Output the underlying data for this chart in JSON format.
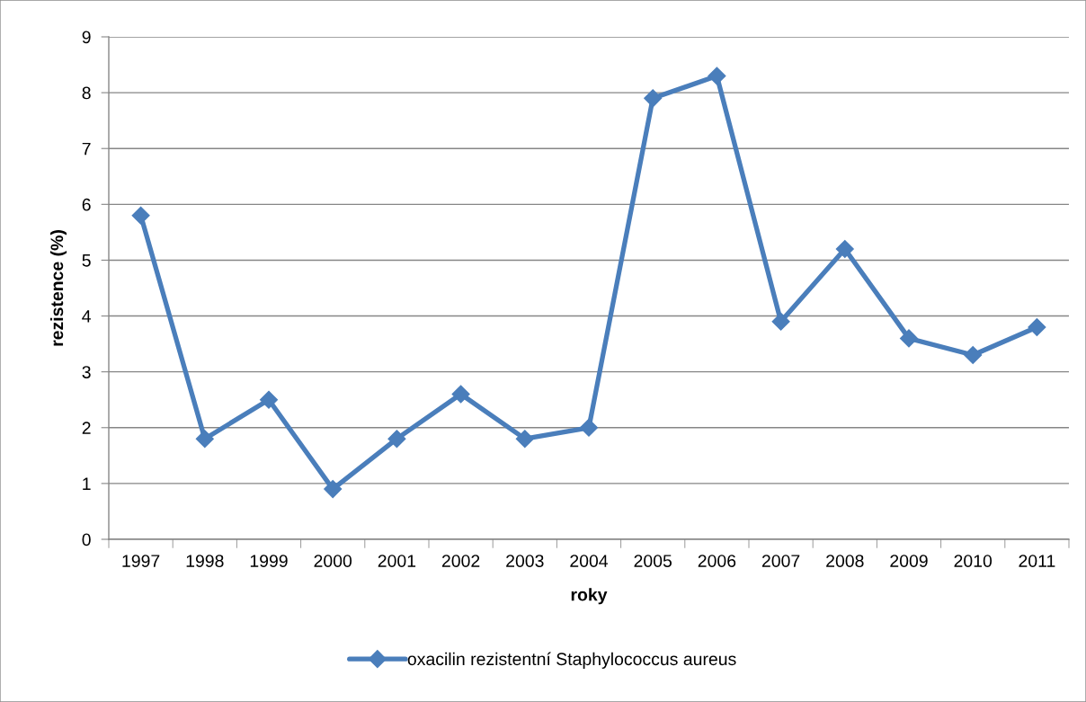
{
  "chart_data": {
    "type": "line",
    "xlabel": "roky",
    "ylabel": "rezistence (%)",
    "categories": [
      "1997",
      "1998",
      "1999",
      "2000",
      "2001",
      "2002",
      "2003",
      "2004",
      "2005",
      "2006",
      "2007",
      "2008",
      "2009",
      "2010",
      "2011"
    ],
    "series": [
      {
        "name": "oxacilin rezistentní Staphylococcus aureus",
        "color": "#4a7ebb",
        "values": [
          5.8,
          1.8,
          2.5,
          0.9,
          1.8,
          2.6,
          1.8,
          2.0,
          7.9,
          8.3,
          3.9,
          5.2,
          3.6,
          3.3,
          3.8
        ]
      }
    ],
    "ylim": [
      0,
      9
    ],
    "yticks": [
      0,
      1,
      2,
      3,
      4,
      5,
      6,
      7,
      8,
      9
    ],
    "grid": "y",
    "legend": "bottom",
    "marker": "diamond",
    "line_style": "solid"
  }
}
